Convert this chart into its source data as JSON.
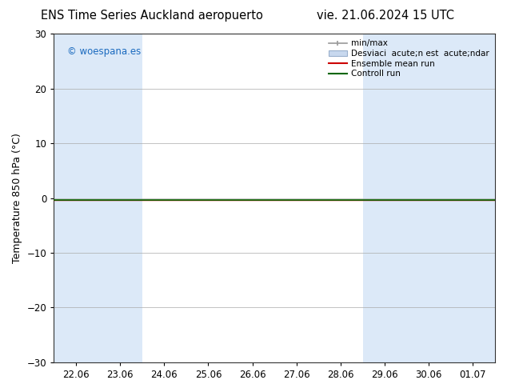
{
  "title_left": "ENS Time Series Auckland aeropuerto",
  "title_right": "vie. 21.06.2024 15 UTC",
  "ylabel": "Temperature 850 hPa (°C)",
  "xlim_labels": [
    "22.06",
    "23.06",
    "24.06",
    "25.06",
    "26.06",
    "27.06",
    "28.06",
    "29.06",
    "30.06",
    "01.07"
  ],
  "ylim": [
    -30,
    30
  ],
  "yticks": [
    -30,
    -20,
    -10,
    0,
    10,
    20,
    30
  ],
  "background_color": "#ffffff",
  "plot_bg_color": "#ffffff",
  "watermark": "© woespana.es",
  "watermark_color": "#1a6abf",
  "shaded_color": "#dce9f8",
  "shaded_columns": [
    0,
    1,
    7,
    8,
    9
  ],
  "control_run_color": "#006600",
  "ensemble_mean_color": "#cc0000",
  "minmax_color": "#999999",
  "desviac_color": "#c8d8ee",
  "legend_label_minmax": "min/max",
  "legend_label_desviac": "Desviaci  acute;n est  acute;ndar",
  "legend_label_ensemble": "Ensemble mean run",
  "legend_label_control": "Controll run",
  "title_fontsize": 10.5,
  "tick_fontsize": 8.5,
  "ylabel_fontsize": 9,
  "legend_fontsize": 7.5
}
